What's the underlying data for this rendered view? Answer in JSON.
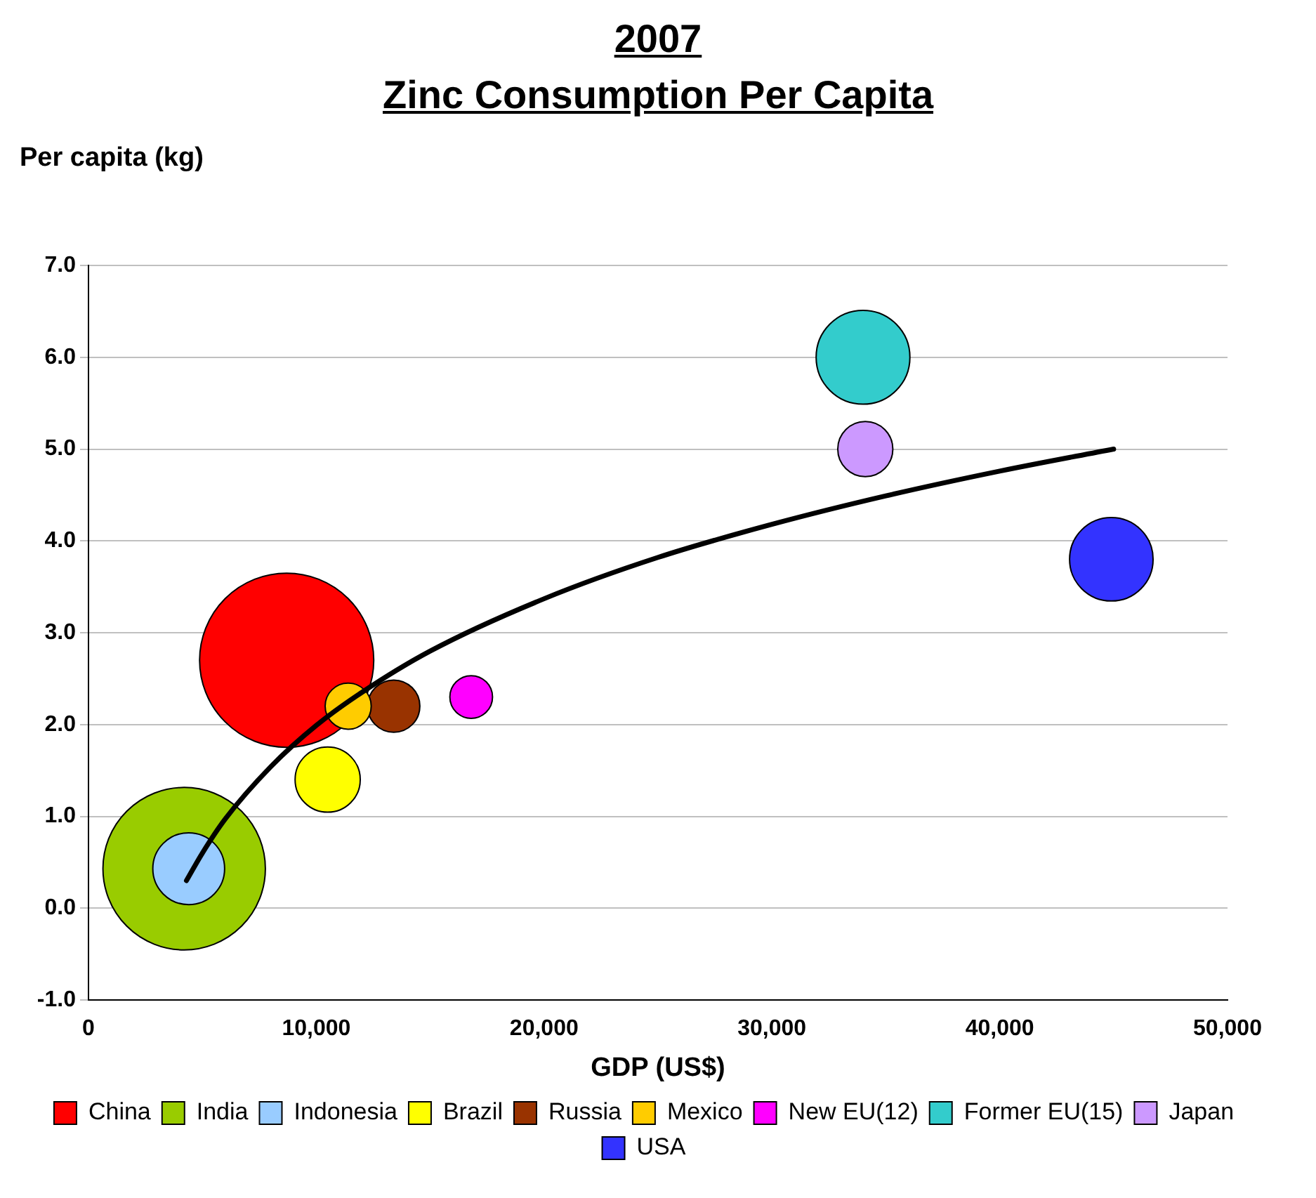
{
  "chart_data": {
    "type": "bubble",
    "title": "2007",
    "subtitle": "Zinc Consumption Per Capita",
    "xlabel": "GDP (US$)",
    "ylabel": "Per capita (kg)",
    "xlim": [
      0,
      50000
    ],
    "xticks": [
      0,
      {
        "value": 10000,
        "label": "10,000"
      },
      {
        "value": 20000,
        "label": "20,000"
      },
      {
        "value": 30000,
        "label": "30,000"
      },
      {
        "value": 40000,
        "label": "40,000"
      },
      {
        "value": 50000,
        "label": "50,000"
      }
    ],
    "ylim": [
      -1,
      7
    ],
    "yticks": [
      {
        "value": -1,
        "label": "-1.0"
      },
      {
        "value": 0,
        "label": "0.0"
      },
      {
        "value": 1,
        "label": "1.0"
      },
      {
        "value": 2,
        "label": "2.0"
      },
      {
        "value": 3,
        "label": "3.0"
      },
      {
        "value": 4,
        "label": "4.0"
      },
      {
        "value": 5,
        "label": "5.0"
      },
      {
        "value": 6,
        "label": "6.0"
      },
      {
        "value": 7,
        "label": "7.0"
      }
    ],
    "grid": "y",
    "legend": "bottom",
    "series": [
      {
        "name": "China",
        "color": "#ff0000",
        "x": [
          8700
        ],
        "values": [
          2.7
        ],
        "sizes": [
          1
        ]
      },
      {
        "name": "India",
        "color": "#99cc00",
        "x": [
          4200
        ],
        "values": [
          0.43
        ],
        "sizes": [
          0.87
        ]
      },
      {
        "name": "Indonesia",
        "color": "#99ccff",
        "x": [
          4400
        ],
        "values": [
          0.43
        ],
        "sizes": [
          0.17
        ]
      },
      {
        "name": "Brazil",
        "color": "#ffff00",
        "x": [
          10500
        ],
        "values": [
          1.4
        ],
        "sizes": [
          0.14
        ]
      },
      {
        "name": "Russia",
        "color": "#993300",
        "x": [
          13400
        ],
        "values": [
          2.2
        ],
        "sizes": [
          0.09
        ]
      },
      {
        "name": "Mexico",
        "color": "#ffcc00",
        "x": [
          11400
        ],
        "values": [
          2.2
        ],
        "sizes": [
          0.07
        ]
      },
      {
        "name": "New EU(12)",
        "color": "#ff00ff",
        "x": [
          16800
        ],
        "values": [
          2.3
        ],
        "sizes": [
          0.06
        ]
      },
      {
        "name": "Former EU(15)",
        "color": "#33cccc",
        "x": [
          34000
        ],
        "values": [
          6.0
        ],
        "sizes": [
          0.29
        ]
      },
      {
        "name": "Japan",
        "color": "#cc99ff",
        "x": [
          34100
        ],
        "values": [
          5.0
        ],
        "sizes": [
          0.1
        ]
      },
      {
        "name": "USA",
        "color": "#3333ff",
        "x": [
          44900
        ],
        "values": [
          3.8
        ],
        "sizes": [
          0.23
        ]
      },
      {
        "type": "line",
        "color": "#000000",
        "x": [
          4300,
          5000,
          6000,
          8000,
          10000,
          12000,
          15000,
          20000,
          25000,
          30000,
          35000,
          40000,
          45000
        ],
        "values": [
          0.3,
          0.6,
          0.97,
          1.54,
          1.99,
          2.35,
          2.8,
          3.37,
          3.82,
          4.18,
          4.49,
          4.76,
          5.0
        ]
      }
    ]
  }
}
